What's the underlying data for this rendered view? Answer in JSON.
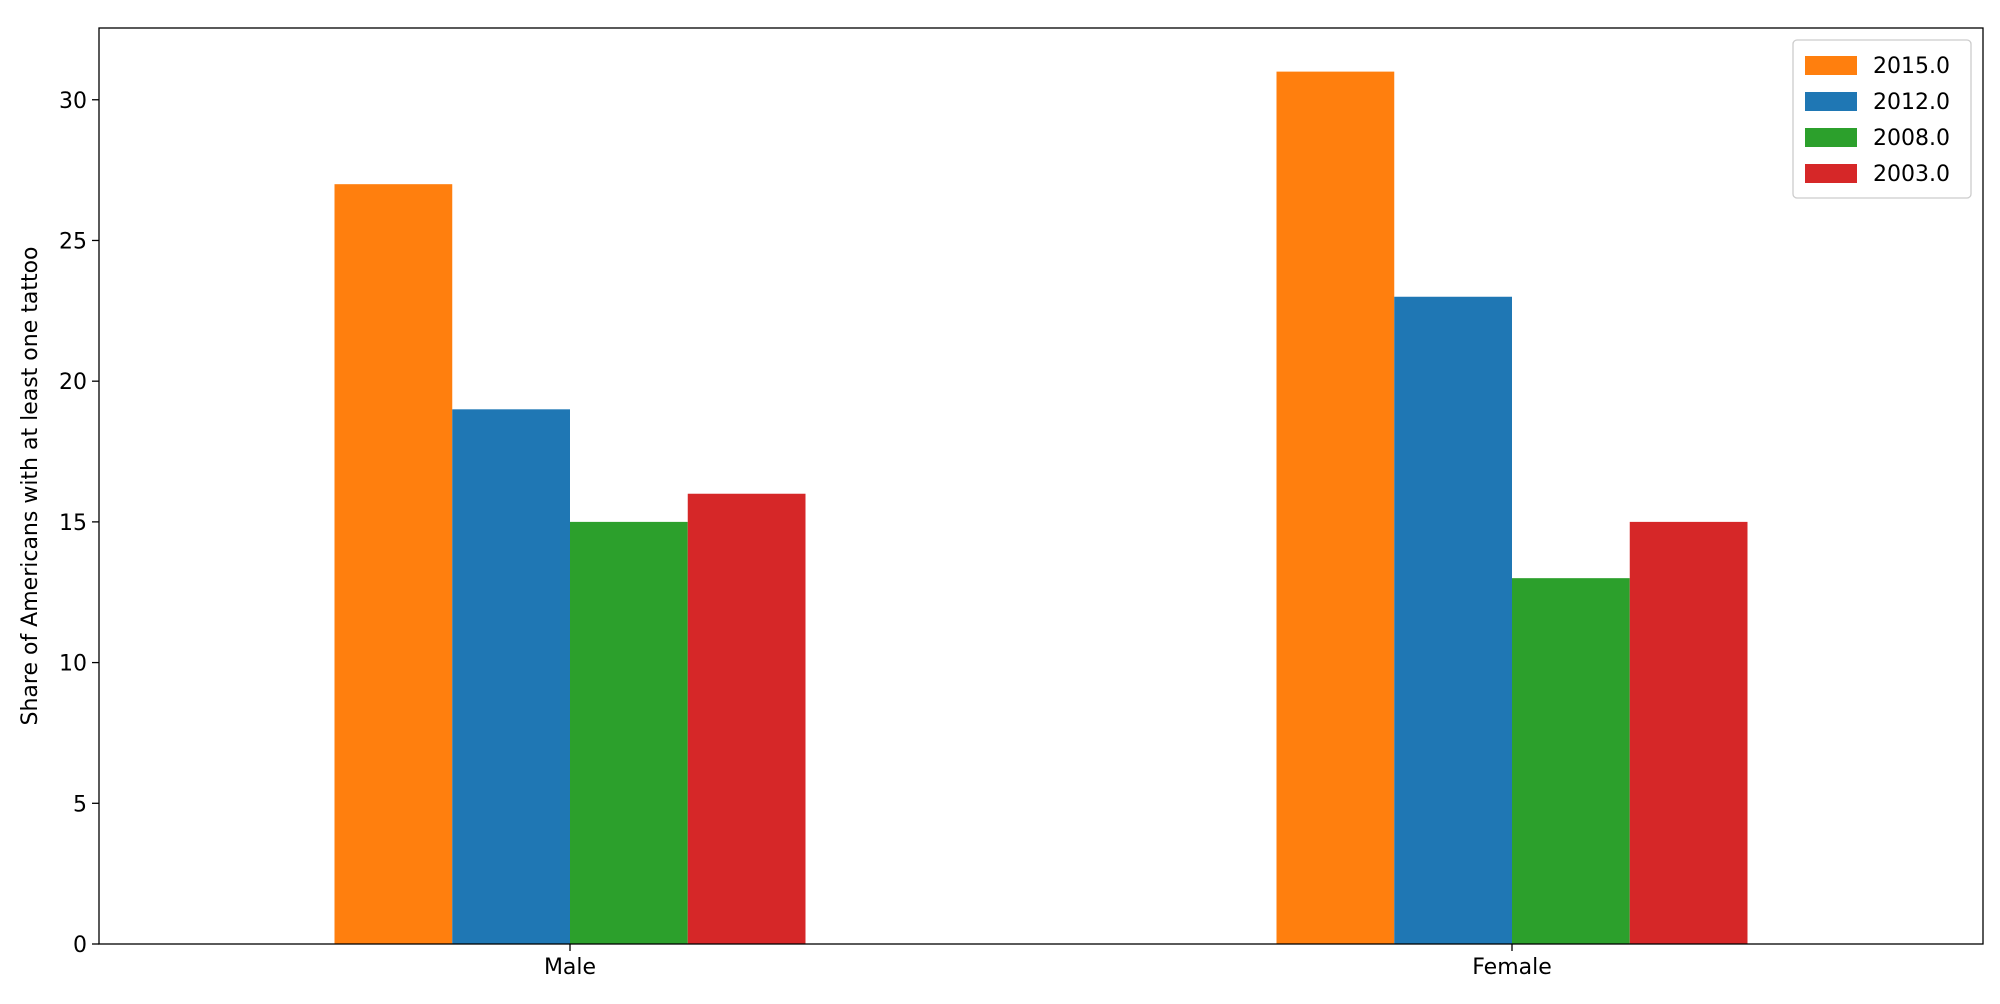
{
  "chart_data": {
    "type": "bar",
    "title": "",
    "xlabel": "",
    "ylabel": "Share of Americans with at least one tattoo",
    "categories": [
      "Male",
      "Female"
    ],
    "series": [
      {
        "name": "2015.0",
        "color": "#ff7f0e",
        "values": [
          27,
          31
        ]
      },
      {
        "name": "2012.0",
        "color": "#1f77b4",
        "values": [
          19,
          23
        ]
      },
      {
        "name": "2008.0",
        "color": "#2ca02c",
        "values": [
          15,
          13
        ]
      },
      {
        "name": "2003.0",
        "color": "#d62728",
        "values": [
          16,
          15
        ]
      }
    ],
    "yticks": [
      0,
      5,
      10,
      15,
      20,
      25,
      30
    ],
    "ylim": [
      0,
      32.55
    ],
    "grid": false,
    "legend": "top-right"
  }
}
